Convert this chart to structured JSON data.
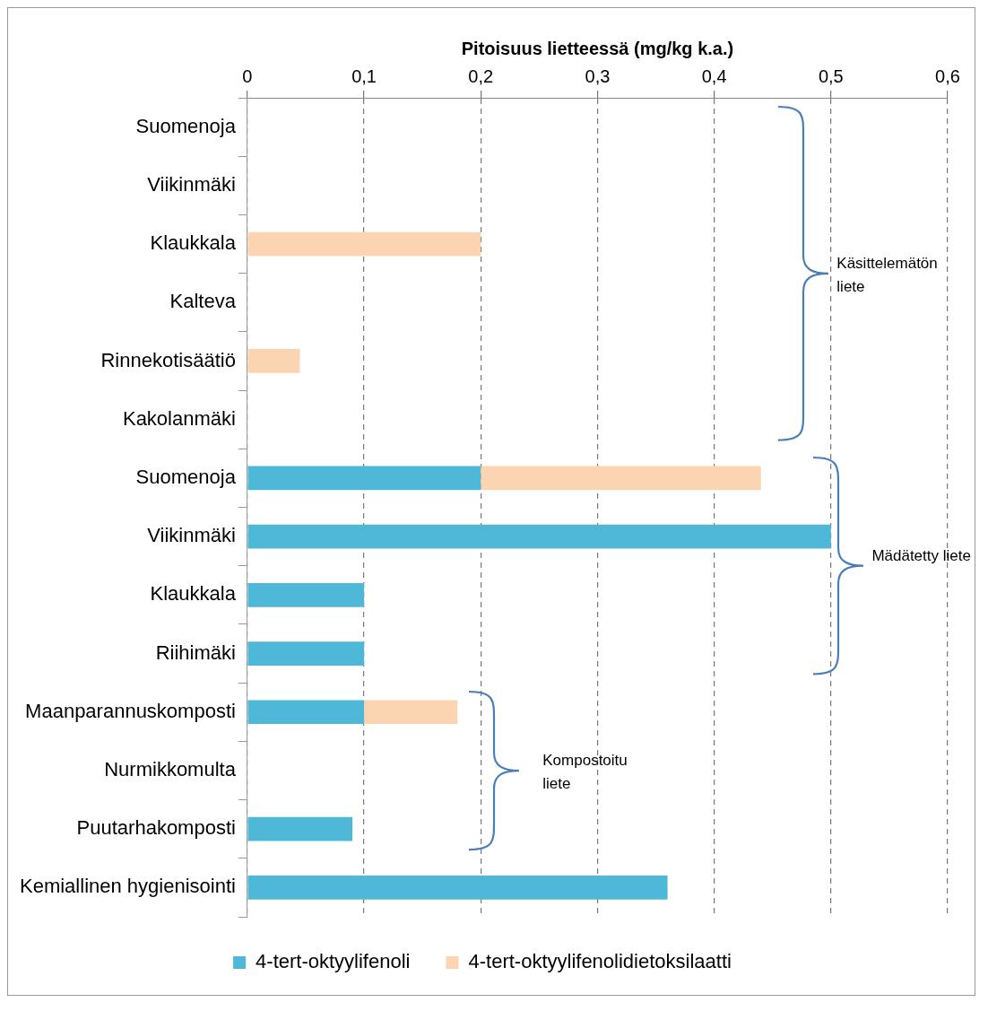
{
  "chart_data": {
    "type": "bar",
    "orientation": "horizontal",
    "stacked": true,
    "xlabel": "Pitoisuus lietteessä (mg/kg k.a.)",
    "categories": [
      "Suomenoja",
      "Viikinmäki",
      "Klaukkala",
      "Kalteva",
      "Rinnekotisäätiö",
      "Kakolanmäki",
      "Suomenoja",
      "Viikinmäki",
      "Klaukkala",
      "Riihimäki",
      "Maanparannuskomposti",
      "Nurmikkomulta",
      "Puutarhakomposti",
      "Kemiallinen hygienisointi"
    ],
    "series": [
      {
        "name": "4-tert-oktyylifenoli",
        "color": "#4fb8d8",
        "values": [
          null,
          null,
          null,
          null,
          null,
          null,
          0.2,
          0.5,
          0.1,
          0.1,
          0.1,
          null,
          0.09,
          0.36
        ]
      },
      {
        "name": "4-tert-oktyylifenolidietoksilaatti",
        "color": "#fbd5b2",
        "values": [
          null,
          null,
          0.2,
          null,
          0.045,
          null,
          0.24,
          null,
          null,
          null,
          0.08,
          null,
          null,
          null
        ]
      }
    ],
    "xlim": [
      0,
      0.6
    ],
    "xticks": [
      0,
      {
        "value": 0.1,
        "label": "0,1"
      },
      {
        "value": 0.2,
        "label": "0,2"
      },
      {
        "value": 0.3,
        "label": "0,3"
      },
      {
        "value": 0.4,
        "label": "0,4"
      },
      {
        "value": 0.5,
        "label": "0,5"
      },
      {
        "value": 0.6,
        "label": "0,6"
      }
    ],
    "grid": "x",
    "legend": "bottom",
    "annotations": [
      "Käsittelemätön liete",
      "Mädätetty liete",
      "Kompostoitu liete"
    ]
  }
}
